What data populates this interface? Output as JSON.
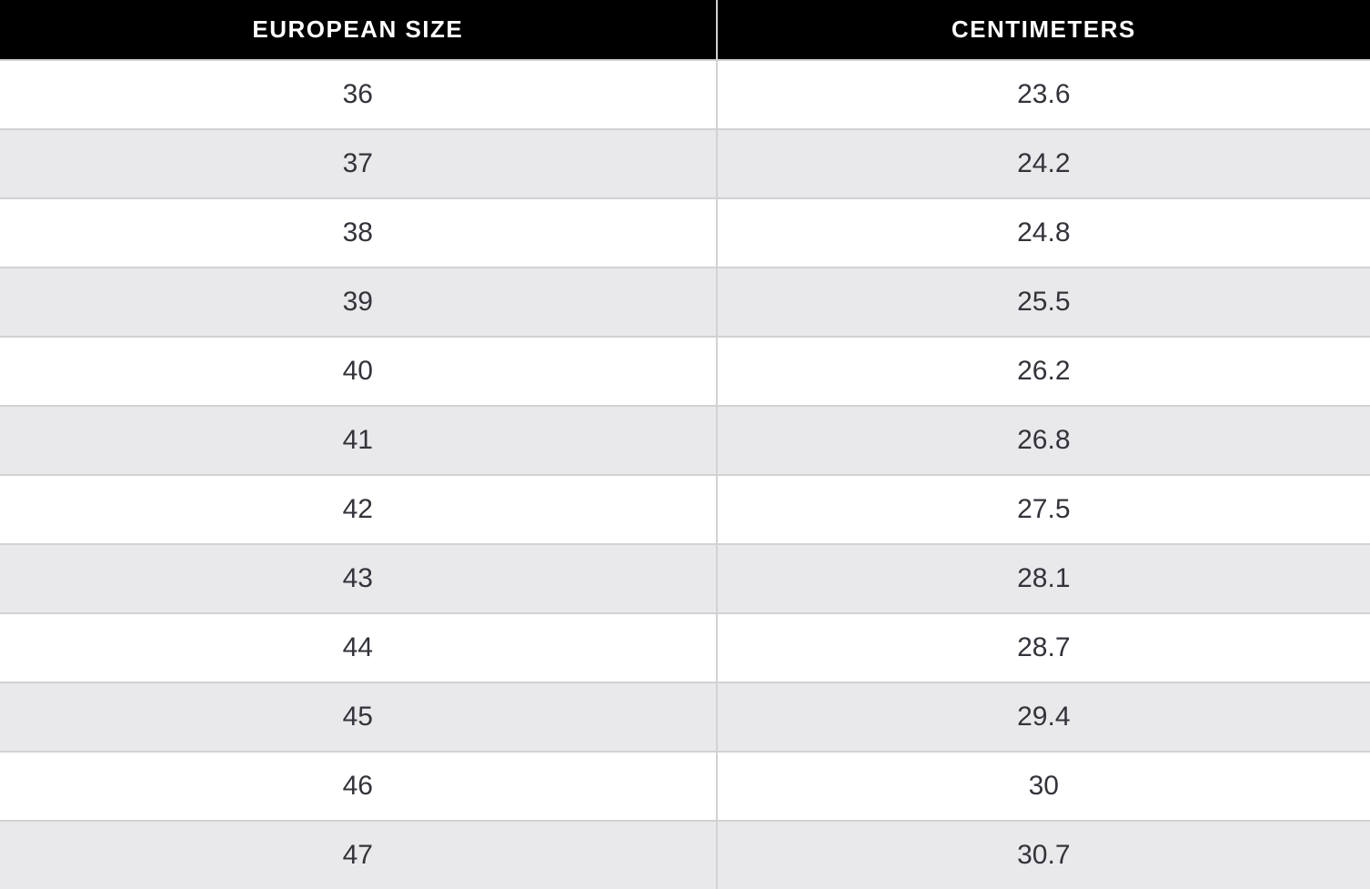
{
  "table": {
    "columns": [
      {
        "label": "EUROPEAN SIZE"
      },
      {
        "label": "CENTIMETERS"
      }
    ],
    "rows": [
      {
        "european_size": "36",
        "centimeters": "23.6"
      },
      {
        "european_size": "37",
        "centimeters": "24.2"
      },
      {
        "european_size": "38",
        "centimeters": "24.8"
      },
      {
        "european_size": "39",
        "centimeters": "25.5"
      },
      {
        "european_size": "40",
        "centimeters": "26.2"
      },
      {
        "european_size": "41",
        "centimeters": "26.8"
      },
      {
        "european_size": "42",
        "centimeters": "27.5"
      },
      {
        "european_size": "43",
        "centimeters": "28.1"
      },
      {
        "european_size": "44",
        "centimeters": "28.7"
      },
      {
        "european_size": "45",
        "centimeters": "29.4"
      },
      {
        "european_size": "46",
        "centimeters": "30"
      },
      {
        "european_size": "47",
        "centimeters": "30.7"
      }
    ]
  },
  "colors": {
    "header_bg": "#000000",
    "header_text": "#ffffff",
    "row_bg": "#ffffff",
    "row_alt_bg": "#e9e9eb",
    "border": "#d2d2d4",
    "cell_text": "#33333b"
  }
}
